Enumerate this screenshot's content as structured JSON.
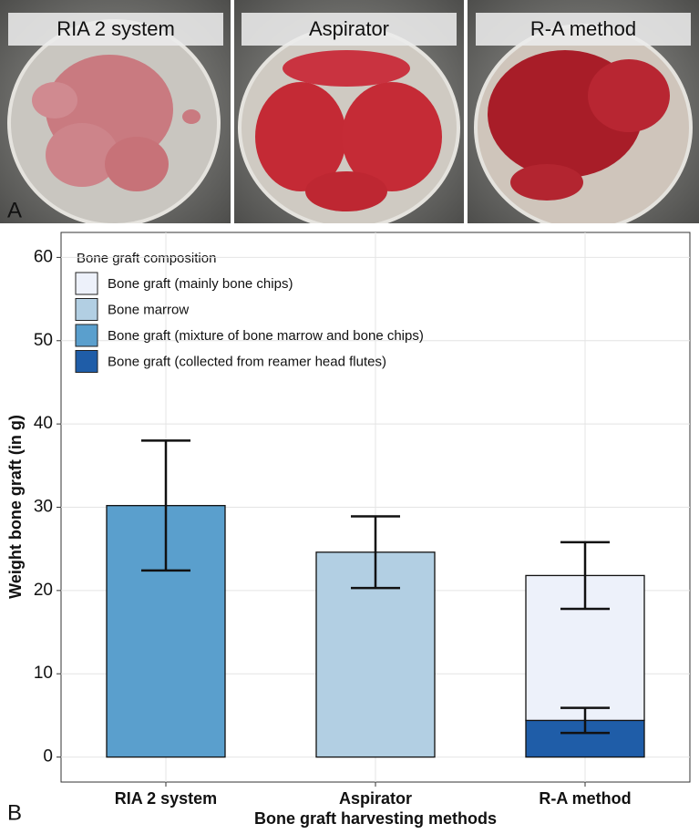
{
  "panel_a": {
    "letter": "A",
    "photos": [
      "RIA 2 system",
      "Aspirator",
      "R-A method"
    ]
  },
  "panel_b_letter": "B",
  "chart_data": {
    "type": "bar",
    "stacked": true,
    "x_label": "Bone graft harvesting methods",
    "y_label": "Weight bone graft (in g)",
    "legend_title": "Bone graft composition",
    "legend_position": "top-left",
    "categories": [
      "RIA 2 system",
      "Aspirator",
      "R-A method"
    ],
    "series": [
      {
        "name": "Bone graft (mainly bone chips)",
        "color": "#edf1fa",
        "values": [
          null,
          null,
          17.4
        ],
        "errors": [
          null,
          null,
          4.0
        ]
      },
      {
        "name": "Bone marrow",
        "color": "#b2cfe3",
        "values": [
          null,
          24.6,
          null
        ],
        "errors": [
          null,
          4.3,
          null
        ]
      },
      {
        "name": "Bone graft (mixture of bone marrow and bone chips)",
        "color": "#5a9fcd",
        "values": [
          30.2,
          null,
          null
        ],
        "errors": [
          7.8,
          null,
          null
        ]
      },
      {
        "name": "Bone graft (collected from reamer head flutes)",
        "color": "#1f5da8",
        "values": [
          null,
          null,
          4.4
        ],
        "errors": [
          null,
          null,
          1.5
        ]
      }
    ],
    "ylim": [
      -3,
      63
    ],
    "yticks": [
      0,
      10,
      20,
      30,
      40,
      50,
      60
    ],
    "grid": true
  }
}
